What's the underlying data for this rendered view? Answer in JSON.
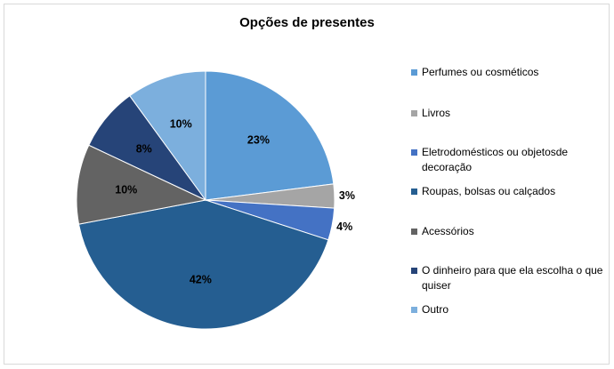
{
  "chart_data": {
    "type": "pie",
    "title": "Opções de presentes",
    "legend_position": "right",
    "slices": [
      {
        "label": "Perfumes ou cosméticos",
        "value": 23,
        "display": "23%",
        "color": "#5b9bd5"
      },
      {
        "label": "Livros",
        "value": 3,
        "display": "3%",
        "color": "#a5a5a5"
      },
      {
        "label": "Eletrodomésticos ou objetosde decoração",
        "value": 4,
        "display": "4%",
        "color": "#4472c4"
      },
      {
        "label": "Roupas, bolsas ou calçados",
        "value": 42,
        "display": "42%",
        "color": "#255e91"
      },
      {
        "label": "Acessórios",
        "value": 10,
        "display": "10%",
        "color": "#636363"
      },
      {
        "label": "O dinheiro para que ela escolha o que quiser",
        "value": 8,
        "display": "8%",
        "color": "#264478"
      },
      {
        "label": "Outro",
        "value": 10,
        "display": "10%",
        "color": "#7cafdd"
      }
    ]
  }
}
